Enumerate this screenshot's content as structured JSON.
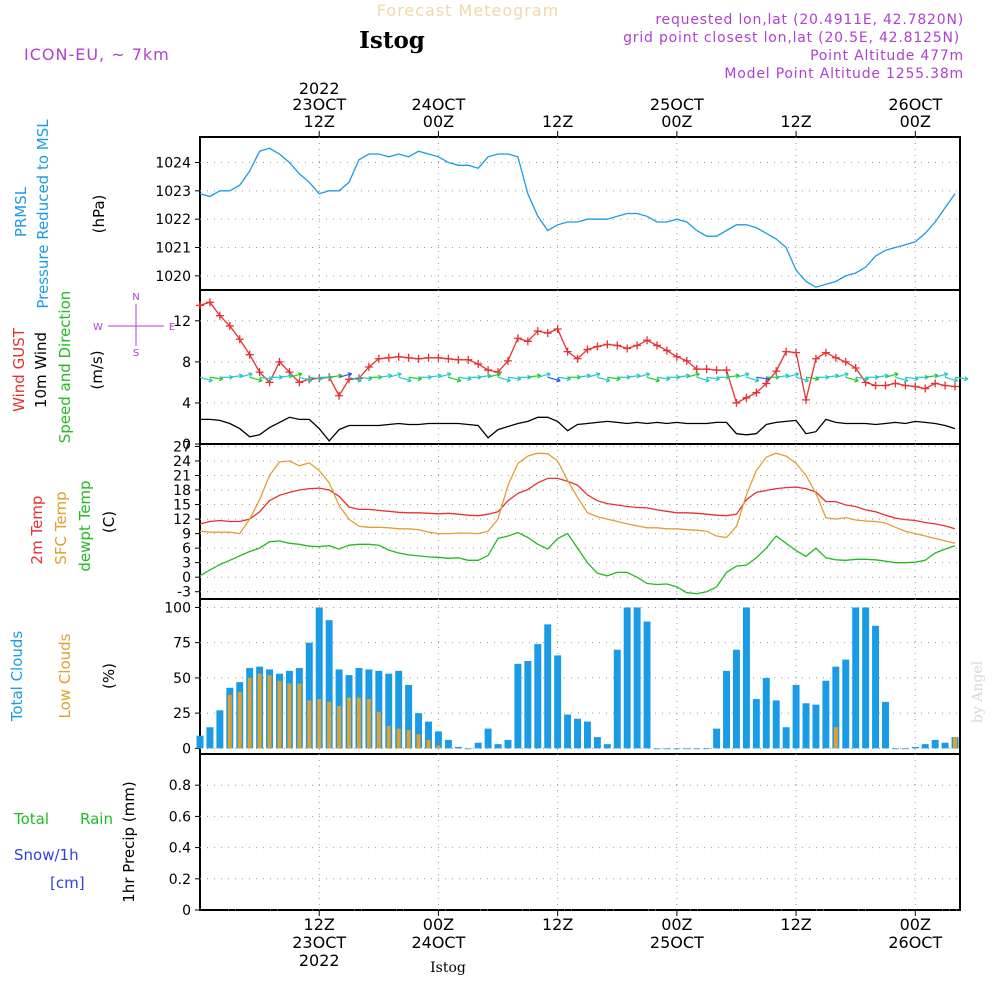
{
  "header": {
    "title": "Forecast Meteogram",
    "location": "Istog",
    "model": "ICON-EU, ~ 7km",
    "requested": "requested lon,lat (20.4911E, 42.7820N)",
    "grid_point": "grid point closest lon,lat (20.5E, 42.8125N)",
    "point_altitude": "Point Altitude 477m",
    "model_altitude": "Model Point Altitude 1255.38m",
    "footer_location": "Istog",
    "credit": "by Angel"
  },
  "time_axis": {
    "top": [
      {
        "t": 12,
        "l1": "2022",
        "l2": "23OCT",
        "l3": "12Z"
      },
      {
        "t": 24,
        "l1": "",
        "l2": "24OCT",
        "l3": "00Z"
      },
      {
        "t": 36,
        "l1": "",
        "l2": "",
        "l3": "12Z"
      },
      {
        "t": 48,
        "l1": "",
        "l2": "25OCT",
        "l3": "00Z"
      },
      {
        "t": 60,
        "l1": "",
        "l2": "",
        "l3": "12Z"
      },
      {
        "t": 72,
        "l1": "",
        "l2": "26OCT",
        "l3": "00Z"
      }
    ],
    "bottom": [
      {
        "t": 12,
        "l1": "12Z",
        "l2": "23OCT",
        "l3": "2022"
      },
      {
        "t": 24,
        "l1": "00Z",
        "l2": "24OCT",
        "l3": ""
      },
      {
        "t": 36,
        "l1": "12Z",
        "l2": "",
        "l3": ""
      },
      {
        "t": 48,
        "l1": "00Z",
        "l2": "25OCT",
        "l3": ""
      },
      {
        "t": 60,
        "l1": "12Z",
        "l2": "",
        "l3": ""
      },
      {
        "t": 72,
        "l1": "00Z",
        "l2": "26OCT",
        "l3": ""
      }
    ]
  },
  "colors": {
    "pressure": "#1a9be6",
    "gust": "#e83030",
    "wind": "#000000",
    "arrow1": "#22c8c8",
    "arrow2": "#22cc22",
    "arrow3": "#3050e0",
    "t2m": "#e83030",
    "sfc": "#e0a030",
    "dewpt": "#22bb22",
    "total_clouds": "#1a9be6",
    "low_clouds": "#e0a030",
    "rain": "#22bb22",
    "snow": "#3040e0",
    "compass": "#b040d0",
    "header_purple": "#b040d0"
  },
  "chart_data": [
    {
      "type": "line",
      "panel": "pressure",
      "labels": [
        "PRMSL",
        "Pressure Reduced to MSL",
        "(hPa)"
      ],
      "ylim": [
        1019.5,
        1024.9
      ],
      "yticks": [
        1020,
        1021,
        1022,
        1023,
        1024
      ],
      "x": [
        0,
        1,
        2,
        3,
        4,
        5,
        6,
        7,
        8,
        9,
        10,
        11,
        12,
        13,
        14,
        15,
        16,
        17,
        18,
        19,
        20,
        21,
        22,
        23,
        24,
        25,
        26,
        27,
        28,
        29,
        30,
        31,
        32,
        33,
        34,
        35,
        36,
        37,
        38,
        39,
        40,
        41,
        42,
        43,
        44,
        45,
        46,
        47,
        48,
        49,
        50,
        51,
        52,
        53,
        54,
        55,
        56,
        57,
        58,
        59,
        60,
        61,
        62,
        63,
        64,
        65,
        66,
        67,
        68,
        69,
        70,
        71,
        72,
        73,
        74,
        75,
        76
      ],
      "values": [
        1022.9,
        1022.8,
        1023.0,
        1023.0,
        1023.2,
        1023.7,
        1024.4,
        1024.5,
        1024.3,
        1024.0,
        1023.6,
        1023.3,
        1022.9,
        1023.0,
        1023.0,
        1023.3,
        1024.1,
        1024.3,
        1024.3,
        1024.2,
        1024.3,
        1024.2,
        1024.4,
        1024.3,
        1024.2,
        1024.0,
        1023.9,
        1023.9,
        1023.8,
        1024.2,
        1024.3,
        1024.3,
        1024.2,
        1022.9,
        1022.1,
        1021.6,
        1021.8,
        1021.9,
        1021.9,
        1022.0,
        1022.0,
        1022.0,
        1022.1,
        1022.2,
        1022.2,
        1022.1,
        1021.9,
        1021.9,
        1022.0,
        1021.9,
        1021.6,
        1021.4,
        1021.4,
        1021.6,
        1021.8,
        1021.8,
        1021.7,
        1021.5,
        1021.3,
        1021.0,
        1020.2,
        1019.8,
        1019.6,
        1019.7,
        1019.8,
        1020.0,
        1020.1,
        1020.3,
        1020.7,
        1020.9,
        1021.0,
        1021.1,
        1021.2,
        1021.5,
        1021.9,
        1022.4,
        1022.9
      ],
      "series": [
        {
          "name": "PRMSL",
          "color": "#1a9be6"
        }
      ]
    },
    {
      "type": "line",
      "panel": "wind",
      "labels": [
        "Wind GUST",
        "10m Wind",
        "Speed and Direction",
        "(m/s)"
      ],
      "compass": {
        "n": "N",
        "s": "S",
        "w": "W",
        "e": "E"
      },
      "ylim": [
        0,
        15
      ],
      "yticks": [
        0,
        4,
        8,
        12
      ],
      "x": [
        0,
        1,
        2,
        3,
        4,
        5,
        6,
        7,
        8,
        9,
        10,
        11,
        12,
        13,
        14,
        15,
        16,
        17,
        18,
        19,
        20,
        21,
        22,
        23,
        24,
        25,
        26,
        27,
        28,
        29,
        30,
        31,
        32,
        33,
        34,
        35,
        36,
        37,
        38,
        39,
        40,
        41,
        42,
        43,
        44,
        45,
        46,
        47,
        48,
        49,
        50,
        51,
        52,
        53,
        54,
        55,
        56,
        57,
        58,
        59,
        60,
        61,
        62,
        63,
        64,
        65,
        66,
        67,
        68,
        69,
        70,
        71,
        72,
        73,
        74,
        75,
        76
      ],
      "series": [
        {
          "name": "Wind GUST",
          "color": "#e83030",
          "values": [
            13.5,
            13.8,
            12.5,
            11.5,
            10.2,
            8.7,
            7.0,
            6.0,
            8.0,
            7.0,
            6.0,
            6.3,
            6.4,
            6.5,
            4.7,
            6.3,
            6.4,
            7.5,
            8.3,
            8.4,
            8.5,
            8.4,
            8.3,
            8.4,
            8.4,
            8.3,
            8.2,
            8.2,
            7.8,
            7.2,
            7.0,
            8.1,
            10.3,
            10.0,
            11.0,
            10.8,
            11.2,
            9.0,
            8.3,
            9.2,
            9.5,
            9.7,
            9.6,
            9.3,
            9.6,
            10.1,
            9.6,
            9.1,
            8.5,
            8.1,
            7.3,
            7.3,
            7.2,
            7.2,
            4.0,
            4.5,
            5.0,
            5.9,
            7.1,
            9.0,
            8.9,
            4.3,
            8.3,
            8.9,
            8.4,
            8.0,
            7.4,
            6.0,
            5.7,
            5.7,
            5.9,
            5.7,
            5.6,
            5.4,
            5.9,
            5.7,
            5.6
          ]
        },
        {
          "name": "10m Wind",
          "color": "#000000",
          "values": [
            2.4,
            2.4,
            2.3,
            2.0,
            1.5,
            0.7,
            0.9,
            1.6,
            2.1,
            2.6,
            2.4,
            2.4,
            1.5,
            0.3,
            1.4,
            1.8,
            1.8,
            1.8,
            1.8,
            1.9,
            2.0,
            1.9,
            1.9,
            2.0,
            2.0,
            2.0,
            2.0,
            1.9,
            1.8,
            0.6,
            1.4,
            1.7,
            2.0,
            2.2,
            2.6,
            2.6,
            2.2,
            1.3,
            1.9,
            2.0,
            2.1,
            2.2,
            2.1,
            2.0,
            2.1,
            2.0,
            2.1,
            2.0,
            2.1,
            2.0,
            2.0,
            2.0,
            2.1,
            2.1,
            1.0,
            0.9,
            1.0,
            1.9,
            2.1,
            2.2,
            2.3,
            1.0,
            1.2,
            2.4,
            2.1,
            2.0,
            2.0,
            2.0,
            1.9,
            2.0,
            2.1,
            2.0,
            2.2,
            2.1,
            2.0,
            1.8,
            1.5
          ]
        }
      ]
    },
    {
      "type": "line",
      "panel": "temperature",
      "labels": [
        "2m Temp",
        "SFC Temp",
        "dewpt Temp",
        "(C)"
      ],
      "ylim": [
        -4.5,
        27.5
      ],
      "yticks": [
        -3,
        0,
        3,
        6,
        9,
        12,
        15,
        18,
        21,
        24,
        27
      ],
      "x": [
        0,
        1,
        2,
        3,
        4,
        5,
        6,
        7,
        8,
        9,
        10,
        11,
        12,
        13,
        14,
        15,
        16,
        17,
        18,
        19,
        20,
        21,
        22,
        23,
        24,
        25,
        26,
        27,
        28,
        29,
        30,
        31,
        32,
        33,
        34,
        35,
        36,
        37,
        38,
        39,
        40,
        41,
        42,
        43,
        44,
        45,
        46,
        47,
        48,
        49,
        50,
        51,
        52,
        53,
        54,
        55,
        56,
        57,
        58,
        59,
        60,
        61,
        62,
        63,
        64,
        65,
        66,
        67,
        68,
        69,
        70,
        71,
        72,
        73,
        74,
        75,
        76
      ],
      "series": [
        {
          "name": "2m Temp",
          "color": "#e83030",
          "values": [
            11.0,
            11.5,
            11.7,
            11.5,
            11.5,
            12.0,
            13.5,
            15.8,
            16.9,
            17.5,
            18.0,
            18.3,
            18.4,
            18.0,
            16.7,
            14.5,
            14.0,
            14.0,
            13.8,
            13.6,
            13.4,
            13.3,
            13.3,
            13.2,
            13.1,
            13.2,
            13.0,
            12.8,
            12.7,
            13.0,
            13.5,
            15.8,
            17.3,
            18.1,
            19.5,
            20.4,
            20.4,
            19.8,
            19.0,
            17.0,
            15.8,
            15.2,
            14.9,
            14.6,
            14.4,
            14.3,
            13.9,
            13.6,
            13.3,
            13.3,
            13.2,
            13.0,
            12.8,
            12.7,
            13.0,
            16.0,
            17.5,
            17.9,
            18.3,
            18.5,
            18.6,
            18.3,
            17.6,
            15.6,
            15.6,
            14.9,
            14.6,
            13.9,
            13.5,
            12.8,
            12.2,
            11.9,
            11.7,
            11.3,
            11.0,
            10.6,
            10.0
          ]
        },
        {
          "name": "SFC Temp",
          "color": "#e0a030",
          "values": [
            9.5,
            9.3,
            9.3,
            9.3,
            9.0,
            12.0,
            16.0,
            21.0,
            23.8,
            24.0,
            23.0,
            23.6,
            22.0,
            19.5,
            14.8,
            12.0,
            10.5,
            10.3,
            10.3,
            10.2,
            10.0,
            10.0,
            9.8,
            9.3,
            9.0,
            9.0,
            9.1,
            9.1,
            9.0,
            9.5,
            12.0,
            19.0,
            23.5,
            25.0,
            25.6,
            25.5,
            24.0,
            20.0,
            16.5,
            13.3,
            12.5,
            12.0,
            11.5,
            11.0,
            10.6,
            10.2,
            10.2,
            10.0,
            10.0,
            9.8,
            9.7,
            9.5,
            8.5,
            8.2,
            10.5,
            17.0,
            22.0,
            24.8,
            25.6,
            25.0,
            23.5,
            21.0,
            17.3,
            12.3,
            12.0,
            12.3,
            11.8,
            11.6,
            11.5,
            11.2,
            10.3,
            9.5,
            9.0,
            8.5,
            8.0,
            7.5,
            7.0
          ]
        },
        {
          "name": "dewpt Temp",
          "color": "#22bb22",
          "values": [
            0.3,
            1.5,
            2.6,
            3.5,
            4.4,
            5.3,
            6.0,
            7.3,
            7.5,
            7.0,
            6.8,
            6.4,
            6.3,
            6.5,
            5.8,
            6.6,
            6.8,
            6.8,
            6.6,
            5.6,
            5.0,
            4.6,
            4.4,
            4.2,
            4.1,
            3.9,
            4.0,
            3.5,
            3.5,
            4.5,
            8.0,
            8.5,
            9.2,
            8.2,
            6.8,
            5.8,
            8.0,
            9.0,
            6.0,
            3.0,
            0.8,
            0.3,
            1.0,
            1.0,
            0.0,
            -1.3,
            -1.5,
            -1.4,
            -2.0,
            -3.2,
            -3.4,
            -3.0,
            -2.0,
            1.0,
            2.3,
            2.5,
            4.0,
            6.0,
            8.5,
            7.0,
            5.5,
            4.3,
            6.0,
            4.0,
            3.6,
            3.5,
            3.7,
            3.7,
            3.6,
            3.3,
            3.0,
            3.0,
            3.1,
            3.5,
            5.0,
            5.8,
            6.5
          ]
        }
      ]
    },
    {
      "type": "bar",
      "panel": "clouds",
      "labels": [
        "Total Clouds",
        "Low Clouds",
        "(%)"
      ],
      "ylim": [
        -4,
        106
      ],
      "yticks": [
        0,
        25,
        50,
        75,
        100
      ],
      "x": [
        0,
        1,
        2,
        3,
        4,
        5,
        6,
        7,
        8,
        9,
        10,
        11,
        12,
        13,
        14,
        15,
        16,
        17,
        18,
        19,
        20,
        21,
        22,
        23,
        24,
        25,
        26,
        27,
        28,
        29,
        30,
        31,
        32,
        33,
        34,
        35,
        36,
        37,
        38,
        39,
        40,
        41,
        42,
        43,
        44,
        45,
        46,
        47,
        48,
        49,
        50,
        51,
        52,
        53,
        54,
        55,
        56,
        57,
        58,
        59,
        60,
        61,
        62,
        63,
        64,
        65,
        66,
        67,
        68,
        69,
        70,
        71,
        72,
        73,
        74,
        75,
        76
      ],
      "series": [
        {
          "name": "Total Clouds",
          "color": "#1a9be6",
          "values": [
            9,
            15,
            27,
            43,
            47,
            57,
            58,
            56,
            53,
            55,
            57,
            75,
            100,
            91,
            56,
            52,
            57,
            56,
            55,
            53,
            55,
            45,
            25,
            19,
            12,
            6,
            1,
            0,
            4,
            14,
            3,
            6,
            60,
            62,
            74,
            88,
            66,
            24,
            21,
            19,
            8,
            3,
            70,
            100,
            100,
            90,
            0,
            0,
            0,
            0,
            0,
            0,
            14,
            55,
            70,
            100,
            35,
            50,
            34,
            15,
            45,
            32,
            31,
            48,
            58,
            63,
            100,
            100,
            87,
            33,
            0,
            0,
            1,
            3,
            6,
            4,
            8
          ]
        },
        {
          "name": "Low Clouds",
          "color": "#e0a030",
          "values": [
            0,
            0,
            0,
            38,
            40,
            50,
            53,
            52,
            48,
            46,
            46,
            34,
            35,
            33,
            30,
            36,
            36,
            35,
            26,
            16,
            14,
            13,
            10,
            6,
            2,
            0,
            0,
            0,
            0,
            0,
            0,
            0,
            0,
            0,
            0,
            0,
            0,
            0,
            0,
            0,
            0,
            0,
            0,
            0,
            0,
            0,
            0,
            0,
            0,
            0,
            0,
            0,
            0,
            0,
            0,
            0,
            0,
            0,
            0,
            0,
            0,
            0,
            0,
            0,
            15,
            0,
            0,
            0,
            0,
            0,
            0,
            0,
            0,
            0,
            0,
            0,
            8
          ]
        }
      ]
    },
    {
      "type": "line",
      "panel": "precip",
      "labels": [
        "Total",
        "Rain",
        "Snow/1h",
        "[cm]",
        "1hr Precip (mm)"
      ],
      "ylim": [
        0,
        1.0
      ],
      "yticks": [
        0,
        0.2,
        0.4,
        0.6,
        0.8
      ],
      "x": [
        0,
        76
      ],
      "series": [
        {
          "name": "1hr Precip",
          "color": "#22bb22",
          "values": [
            0,
            0
          ]
        }
      ]
    }
  ]
}
